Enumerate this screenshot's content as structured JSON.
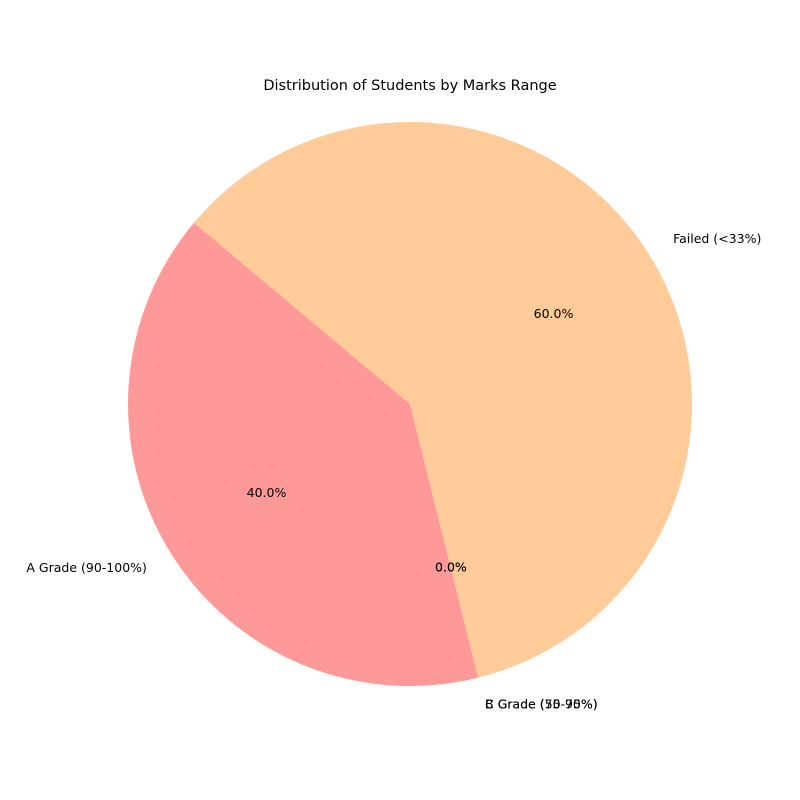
{
  "chart_data": {
    "type": "pie",
    "title": "Distribution of Students by Marks Range",
    "start_angle_deg": 140,
    "direction": "counterclockwise",
    "slices": [
      {
        "label": "A Grade (90-100%)",
        "value": 40.0,
        "pct_text": "40.0%",
        "color": "#ff9999"
      },
      {
        "label": "B Grade (75-90%)",
        "value": 0.0,
        "pct_text": "0.0%",
        "color": "#66b3ff"
      },
      {
        "label": "C Grade (50-75%)",
        "value": 0.0,
        "pct_text": "0.0%",
        "color": "#99ff99"
      },
      {
        "label": "Failed (<33%)",
        "value": 60.0,
        "pct_text": "60.0%",
        "color": "#ffcc99"
      }
    ]
  }
}
